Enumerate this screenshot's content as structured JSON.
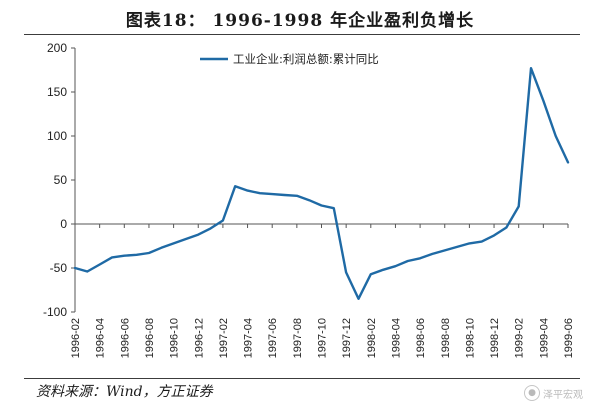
{
  "title": "图表18：  1996-1998 年企业盈利负增长",
  "source": "资料来源：Wind，方正证券",
  "watermark": {
    "text": "泽平宏观",
    "icon": "wechat-icon"
  },
  "colors": {
    "series": "#1f6aa5",
    "axis": "#555555",
    "text": "#222222"
  },
  "chart_data": {
    "type": "line",
    "title": "",
    "xlabel": "",
    "ylabel": "",
    "ylim": [
      -100,
      200
    ],
    "yticks": [
      200,
      150,
      100,
      50,
      0,
      -50,
      -100
    ],
    "grid": false,
    "legend_position": "top-center",
    "x_tick_labels": [
      "1996-02",
      "1996-04",
      "1996-06",
      "1996-08",
      "1996-10",
      "1996-12",
      "1997-02",
      "1997-04",
      "1997-06",
      "1997-08",
      "1997-10",
      "1997-12",
      "1998-02",
      "1998-04",
      "1998-06",
      "1998-08",
      "1998-10",
      "1998-12",
      "1999-02",
      "1999-04",
      "1999-06"
    ],
    "x": [
      "1996-02",
      "1996-03",
      "1996-04",
      "1996-05",
      "1996-06",
      "1996-07",
      "1996-08",
      "1996-09",
      "1996-10",
      "1996-11",
      "1996-12",
      "1997-01",
      "1997-02",
      "1997-03",
      "1997-04",
      "1997-05",
      "1997-06",
      "1997-07",
      "1997-08",
      "1997-09",
      "1997-10",
      "1997-11",
      "1997-12",
      "1998-01",
      "1998-02",
      "1998-03",
      "1998-04",
      "1998-05",
      "1998-06",
      "1998-07",
      "1998-08",
      "1998-09",
      "1998-10",
      "1998-11",
      "1998-12",
      "1999-01",
      "1999-02",
      "1999-03",
      "1999-04",
      "1999-05",
      "1999-06"
    ],
    "series": [
      {
        "name": "工业企业:利润总额:累计同比",
        "values": [
          -50,
          -54,
          -46,
          -38,
          -36,
          -35,
          -33,
          -27,
          -22,
          -17,
          -12,
          -5,
          4,
          43,
          38,
          35,
          34,
          33,
          32,
          27,
          21,
          18,
          -55,
          -85,
          -57,
          -52,
          -48,
          -42,
          -39,
          -34,
          -30,
          -26,
          -22,
          -20,
          -13,
          -4,
          20,
          177,
          140,
          100,
          70
        ]
      }
    ]
  }
}
